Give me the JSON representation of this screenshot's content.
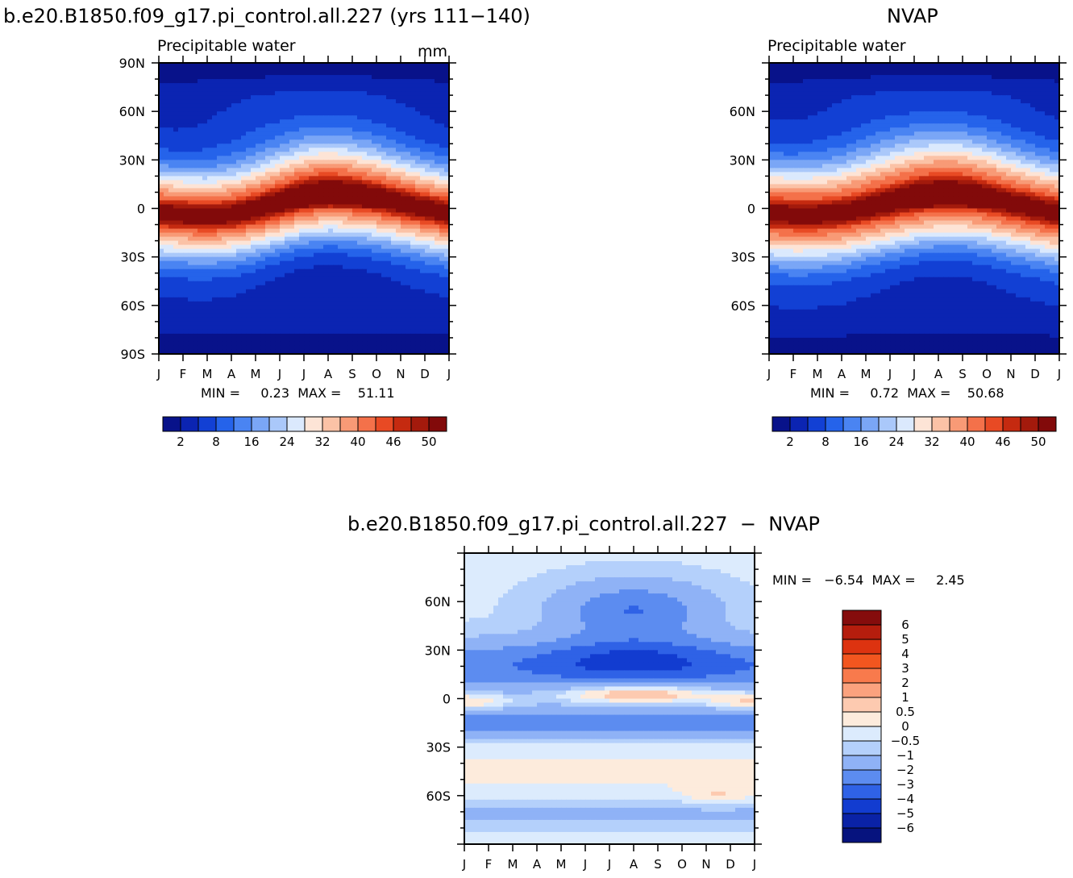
{
  "chart_data": [
    {
      "type": "heatmap",
      "title": "b.e20.B1850.f09_g17.pi_control.all.227 (yrs 111−140)",
      "subtitle": "Precipitable water",
      "units": "mm",
      "xlabel": "",
      "ylabel": "",
      "x_categories": [
        "J",
        "F",
        "M",
        "A",
        "M",
        "J",
        "J",
        "A",
        "S",
        "O",
        "N",
        "D",
        "J"
      ],
      "y_ticks": [
        {
          "value": 90,
          "label": "90N"
        },
        {
          "value": 60,
          "label": "60N"
        },
        {
          "value": 30,
          "label": "30N"
        },
        {
          "value": 0,
          "label": "0"
        },
        {
          "value": -30,
          "label": "30S"
        },
        {
          "value": -60,
          "label": "60S"
        },
        {
          "value": -90,
          "label": "90S"
        }
      ],
      "ylim": [
        -90,
        90
      ],
      "stats_text": "MIN =     0.23  MAX =    51.11",
      "min": 0.23,
      "max": 51.11,
      "peak_lat_by_month": [
        -3,
        -4,
        -5,
        -4,
        -1,
        3,
        7,
        9,
        8,
        6,
        3,
        0,
        -3
      ],
      "half_width_deg": 19,
      "colorbar": {
        "labels": [
          "2",
          "8",
          "16",
          "24",
          "32",
          "40",
          "46",
          "50"
        ],
        "levels": [
          2,
          4,
          8,
          12,
          16,
          20,
          24,
          28,
          32,
          36,
          40,
          44,
          46,
          48,
          50
        ],
        "colors": [
          "#08128a",
          "#0b24b2",
          "#1240d4",
          "#2563ea",
          "#4a84f2",
          "#7aa6f6",
          "#aac8fa",
          "#dbe9fd",
          "#fde4d6",
          "#fbc2a6",
          "#f89a76",
          "#f4714a",
          "#e84a24",
          "#c52a10",
          "#a31a0c",
          "#820a0a"
        ]
      }
    },
    {
      "type": "heatmap",
      "title": "NVAP",
      "subtitle": "Precipitable water",
      "xlabel": "",
      "ylabel": "",
      "x_categories": [
        "J",
        "F",
        "M",
        "A",
        "M",
        "J",
        "J",
        "A",
        "S",
        "O",
        "N",
        "D",
        "J"
      ],
      "y_ticks": [
        {
          "value": 60,
          "label": "60N"
        },
        {
          "value": 30,
          "label": "30N"
        },
        {
          "value": 0,
          "label": "0"
        },
        {
          "value": -30,
          "label": "30S"
        },
        {
          "value": -60,
          "label": "60S"
        }
      ],
      "ylim": [
        -90,
        90
      ],
      "stats_text": "MIN =     0.72  MAX =    50.68",
      "min": 0.72,
      "max": 50.68,
      "peak_lat_by_month": [
        -3,
        -4,
        -4,
        -3,
        0,
        3,
        6,
        8,
        8,
        6,
        3,
        0,
        -3
      ],
      "half_width_deg": 21,
      "colorbar": {
        "labels": [
          "2",
          "8",
          "16",
          "24",
          "32",
          "40",
          "46",
          "50"
        ],
        "levels": [
          2,
          4,
          8,
          12,
          16,
          20,
          24,
          28,
          32,
          36,
          40,
          44,
          46,
          48,
          50
        ],
        "colors": [
          "#08128a",
          "#0b24b2",
          "#1240d4",
          "#2563ea",
          "#4a84f2",
          "#7aa6f6",
          "#aac8fa",
          "#dbe9fd",
          "#fde4d6",
          "#fbc2a6",
          "#f89a76",
          "#f4714a",
          "#e84a24",
          "#c52a10",
          "#a31a0c",
          "#820a0a"
        ]
      }
    },
    {
      "type": "heatmap",
      "title": "b.e20.B1850.f09_g17.pi_control.all.227  −  NVAP",
      "xlabel": "",
      "ylabel": "",
      "x_categories": [
        "J",
        "F",
        "M",
        "A",
        "M",
        "J",
        "J",
        "A",
        "S",
        "O",
        "N",
        "D",
        "J"
      ],
      "y_ticks": [
        {
          "value": 60,
          "label": "60N"
        },
        {
          "value": 30,
          "label": "30N"
        },
        {
          "value": 0,
          "label": "0"
        },
        {
          "value": -30,
          "label": "30S"
        },
        {
          "value": -60,
          "label": "60S"
        }
      ],
      "ylim": [
        -90,
        90
      ],
      "stats_text": "MIN =   −6.54  MAX =     2.45",
      "min": -6.54,
      "max": 2.45,
      "colorbar": {
        "labels": [
          "6",
          "5",
          "4",
          "3",
          "2",
          "1",
          "0.5",
          "0",
          "−0.5",
          "−1",
          "−2",
          "−3",
          "−4",
          "−5",
          "−6"
        ],
        "levels": [
          6,
          5,
          4,
          3,
          2,
          1,
          0.5,
          0,
          -0.5,
          -1,
          -2,
          -3,
          -4,
          -5,
          -6
        ],
        "colors": [
          "#850c0c",
          "#b51d0d",
          "#dd3310",
          "#f2561f",
          "#f87a4c",
          "#fba27e",
          "#fdcab0",
          "#fdebdc",
          "#dcebfd",
          "#b4d0fb",
          "#8fb2f6",
          "#5c8cf0",
          "#2f62e6",
          "#123cd0",
          "#0a22a6",
          "#06137e"
        ]
      }
    }
  ]
}
